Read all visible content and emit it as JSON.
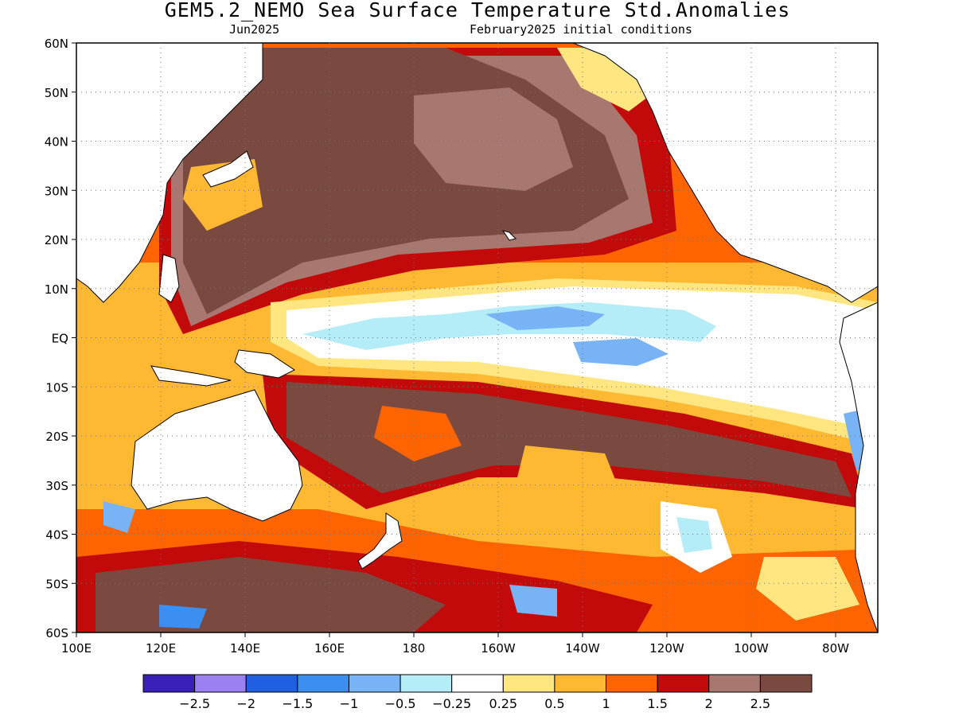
{
  "title": "GEM5.2_NEMO Sea Surface Temperature Std.Anomalies",
  "subtitle_left": "Jun2025",
  "subtitle_right": "February2025 initial conditions",
  "map": {
    "lat_labels": [
      "60N",
      "50N",
      "40N",
      "30N",
      "20N",
      "10N",
      "EQ",
      "10S",
      "20S",
      "30S",
      "40S",
      "50S",
      "60S"
    ],
    "lat_values": [
      60,
      50,
      40,
      30,
      20,
      10,
      0,
      -10,
      -20,
      -30,
      -40,
      -50,
      -60
    ],
    "lon_labels": [
      "100E",
      "120E",
      "140E",
      "160E",
      "180",
      "160W",
      "140W",
      "120W",
      "100W",
      "80W"
    ],
    "lon_values": [
      100,
      120,
      140,
      160,
      180,
      200,
      220,
      240,
      260,
      280
    ],
    "lon_range": [
      100,
      290
    ],
    "lat_range": [
      -60,
      60
    ],
    "grid": true,
    "grid_style": "dotted"
  },
  "colorbar": {
    "colors": [
      "#3a1fb8",
      "#9a80f0",
      "#1f5fe0",
      "#3c8ff0",
      "#78b4f5",
      "#b4ecf8",
      "#ffffff",
      "#ffe680",
      "#ffb832",
      "#ff6400",
      "#c30a0a",
      "#a87870",
      "#7a4a40"
    ],
    "labels": [
      "−2.5",
      "−2",
      "−1.5",
      "−1",
      "−0.5",
      "−0.25",
      "0.25",
      "0.5",
      "1",
      "1.5",
      "2",
      "2.5"
    ]
  }
}
